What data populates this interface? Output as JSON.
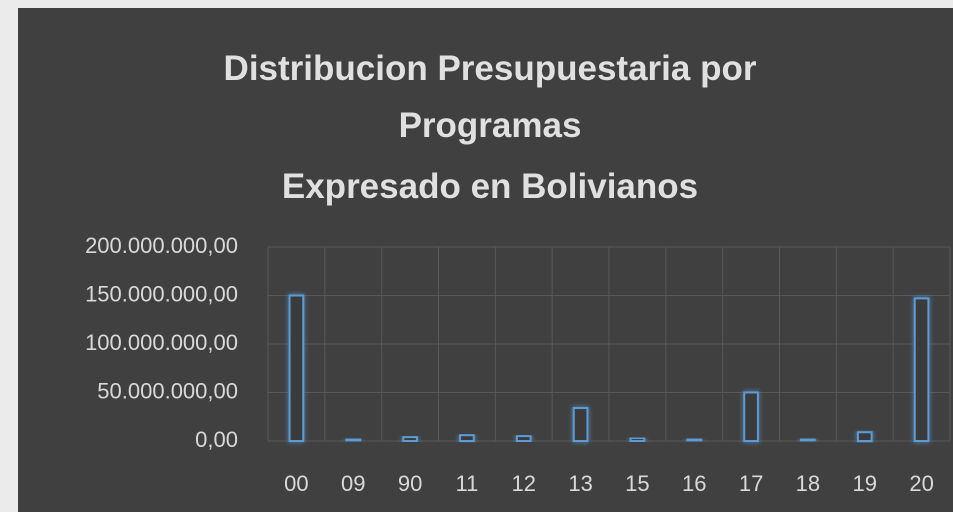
{
  "chart_data": {
    "type": "bar",
    "title": "Distribucion Presupuestaria por Programas",
    "subtitle": "Expresado en Bolivianos",
    "categories": [
      "00",
      "09",
      "90",
      "11",
      "12",
      "13",
      "15",
      "16",
      "17",
      "18",
      "19",
      "20"
    ],
    "values": [
      150000000,
      2000000,
      4000000,
      6000000,
      5000000,
      34000000,
      3000000,
      2000000,
      50000000,
      2000000,
      9000000,
      147000000
    ],
    "color": "#5b9bd5",
    "ylim": [
      0,
      200000000
    ],
    "yticks": [
      {
        "value": 0,
        "label": "0,00"
      },
      {
        "value": 50000000,
        "label": "50.000.000,00"
      },
      {
        "value": 100000000,
        "label": "100.000.000,00"
      },
      {
        "value": 150000000,
        "label": "150.000.000,00"
      },
      {
        "value": 200000000,
        "label": "200.000.000,00"
      }
    ],
    "grid": true
  }
}
